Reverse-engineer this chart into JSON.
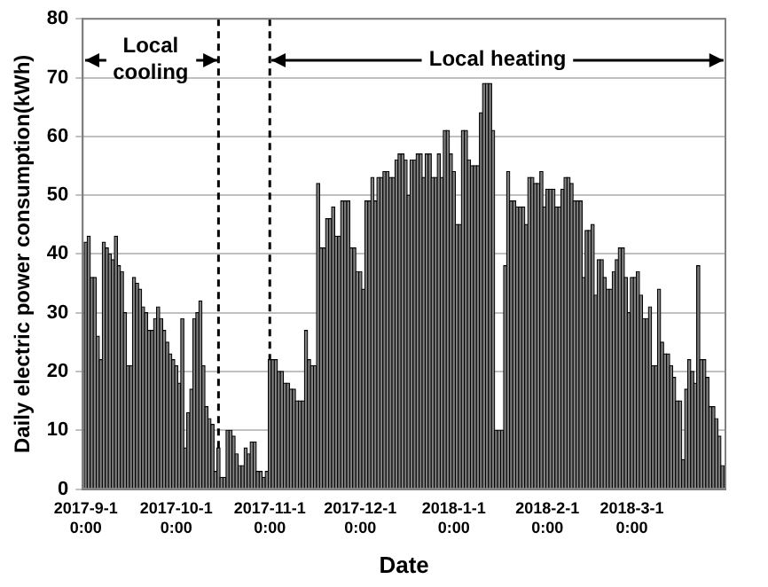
{
  "chart_data": {
    "type": "bar",
    "xlabel": "Date",
    "ylabel": "Daily electric power consumption(kWh)",
    "x": [
      "2017-09-01",
      "2017-09-02",
      "2017-09-03",
      "2017-09-04",
      "2017-09-05",
      "2017-09-06",
      "2017-09-07",
      "2017-09-08",
      "2017-09-09",
      "2017-09-10",
      "2017-09-11",
      "2017-09-12",
      "2017-09-13",
      "2017-09-14",
      "2017-09-15",
      "2017-09-16",
      "2017-09-17",
      "2017-09-18",
      "2017-09-19",
      "2017-09-20",
      "2017-09-21",
      "2017-09-22",
      "2017-09-23",
      "2017-09-24",
      "2017-09-25",
      "2017-09-26",
      "2017-09-27",
      "2017-09-28",
      "2017-09-29",
      "2017-09-30",
      "2017-10-01",
      "2017-10-02",
      "2017-10-03",
      "2017-10-04",
      "2017-10-05",
      "2017-10-06",
      "2017-10-07",
      "2017-10-08",
      "2017-10-09",
      "2017-10-10",
      "2017-10-11",
      "2017-10-12",
      "2017-10-13",
      "2017-10-14",
      "2017-10-15",
      "2017-10-16",
      "2017-10-17",
      "2017-10-18",
      "2017-10-19",
      "2017-10-20",
      "2017-10-21",
      "2017-10-22",
      "2017-10-23",
      "2017-10-24",
      "2017-10-25",
      "2017-10-26",
      "2017-10-27",
      "2017-10-28",
      "2017-10-29",
      "2017-10-30",
      "2017-10-31",
      "2017-11-01",
      "2017-11-02",
      "2017-11-03",
      "2017-11-04",
      "2017-11-05",
      "2017-11-06",
      "2017-11-07",
      "2017-11-08",
      "2017-11-09",
      "2017-11-10",
      "2017-11-11",
      "2017-11-12",
      "2017-11-13",
      "2017-11-14",
      "2017-11-15",
      "2017-11-16",
      "2017-11-17",
      "2017-11-18",
      "2017-11-19",
      "2017-11-20",
      "2017-11-21",
      "2017-11-22",
      "2017-11-23",
      "2017-11-24",
      "2017-11-25",
      "2017-11-26",
      "2017-11-27",
      "2017-11-28",
      "2017-11-29",
      "2017-11-30",
      "2017-12-01",
      "2017-12-02",
      "2017-12-03",
      "2017-12-04",
      "2017-12-05",
      "2017-12-06",
      "2017-12-07",
      "2017-12-08",
      "2017-12-09",
      "2017-12-10",
      "2017-12-11",
      "2017-12-12",
      "2017-12-13",
      "2017-12-14",
      "2017-12-15",
      "2017-12-16",
      "2017-12-17",
      "2017-12-18",
      "2017-12-19",
      "2017-12-20",
      "2017-12-21",
      "2017-12-22",
      "2017-12-23",
      "2017-12-24",
      "2017-12-25",
      "2017-12-26",
      "2017-12-27",
      "2017-12-28",
      "2017-12-29",
      "2017-12-30",
      "2017-12-31",
      "2018-01-01",
      "2018-01-02",
      "2018-01-03",
      "2018-01-04",
      "2018-01-05",
      "2018-01-06",
      "2018-01-07",
      "2018-01-08",
      "2018-01-09",
      "2018-01-10",
      "2018-01-11",
      "2018-01-12",
      "2018-01-13",
      "2018-01-14",
      "2018-01-15",
      "2018-01-16",
      "2018-01-17",
      "2018-01-18",
      "2018-01-19",
      "2018-01-20",
      "2018-01-21",
      "2018-01-22",
      "2018-01-23",
      "2018-01-24",
      "2018-01-25",
      "2018-01-26",
      "2018-01-27",
      "2018-01-28",
      "2018-01-29",
      "2018-01-30",
      "2018-01-31",
      "2018-02-01",
      "2018-02-02",
      "2018-02-03",
      "2018-02-04",
      "2018-02-05",
      "2018-02-06",
      "2018-02-07",
      "2018-02-08",
      "2018-02-09",
      "2018-02-10",
      "2018-02-11",
      "2018-02-12",
      "2018-02-13",
      "2018-02-14",
      "2018-02-15",
      "2018-02-16",
      "2018-02-17",
      "2018-02-18",
      "2018-02-19",
      "2018-02-20",
      "2018-02-21",
      "2018-02-22",
      "2018-02-23",
      "2018-02-24",
      "2018-02-25",
      "2018-02-26",
      "2018-02-27",
      "2018-02-28",
      "2018-03-01",
      "2018-03-02",
      "2018-03-03",
      "2018-03-04",
      "2018-03-05",
      "2018-03-06",
      "2018-03-07",
      "2018-03-08",
      "2018-03-09",
      "2018-03-10",
      "2018-03-11",
      "2018-03-12",
      "2018-03-13",
      "2018-03-14",
      "2018-03-15",
      "2018-03-16",
      "2018-03-17",
      "2018-03-18",
      "2018-03-19",
      "2018-03-20",
      "2018-03-21",
      "2018-03-22",
      "2018-03-23",
      "2018-03-24",
      "2018-03-25",
      "2018-03-26",
      "2018-03-27",
      "2018-03-28",
      "2018-03-29",
      "2018-03-30",
      "2018-03-31"
    ],
    "values": [
      42,
      43,
      36,
      36,
      26,
      22,
      42,
      41,
      40,
      39,
      43,
      38,
      37,
      30,
      21,
      21,
      36,
      35,
      34,
      31,
      30,
      27,
      27,
      29,
      31,
      29,
      27,
      25,
      23,
      22,
      21,
      18,
      29,
      7,
      13,
      17,
      29,
      30,
      32,
      21,
      14,
      12,
      11,
      3,
      7,
      2,
      2,
      10,
      10,
      9,
      6,
      4,
      4,
      7,
      6,
      8,
      8,
      3,
      3,
      2,
      3,
      22,
      22,
      22,
      20,
      20,
      18,
      18,
      17,
      17,
      15,
      15,
      15,
      27,
      22,
      21,
      21,
      52,
      41,
      41,
      46,
      46,
      48,
      43,
      43,
      49,
      49,
      49,
      41,
      41,
      37,
      37,
      34,
      49,
      49,
      53,
      49,
      53,
      53,
      54,
      54,
      53,
      53,
      56,
      57,
      57,
      56,
      50,
      56,
      56,
      57,
      57,
      53,
      57,
      57,
      53,
      53,
      57,
      53,
      61,
      61,
      57,
      54,
      45,
      45,
      61,
      61,
      56,
      55,
      55,
      55,
      64,
      69,
      69,
      69,
      61,
      10,
      10,
      10,
      38,
      54,
      49,
      49,
      48,
      48,
      48,
      45,
      53,
      53,
      52,
      52,
      54,
      48,
      51,
      51,
      51,
      48,
      48,
      51,
      53,
      53,
      52,
      49,
      49,
      49,
      36,
      44,
      44,
      45,
      33,
      39,
      39,
      36,
      34,
      34,
      37,
      39,
      41,
      41,
      36,
      30,
      36,
      36,
      37,
      33,
      29,
      29,
      31,
      21,
      21,
      34,
      25,
      23,
      23,
      21,
      19,
      15,
      15,
      5,
      17,
      22,
      20,
      18,
      38,
      22,
      22,
      19,
      14,
      14,
      12,
      9,
      4
    ],
    "color": "#808080",
    "xlim": [
      "2017-08-31",
      "2018-04-01"
    ],
    "xticks": [
      {
        "value": "2017-09-01",
        "label": "2017-9-1 0:00"
      },
      {
        "value": "2017-10-01",
        "label": "2017-10-1 0:00"
      },
      {
        "value": "2017-11-01",
        "label": "2017-11-1 0:00"
      },
      {
        "value": "2017-12-01",
        "label": "2017-12-1 0:00"
      },
      {
        "value": "2018-01-01",
        "label": "2018-1-1 0:00"
      },
      {
        "value": "2018-02-01",
        "label": "2018-2-1 0:00"
      },
      {
        "value": "2018-03-01",
        "label": "2018-3-1 0:00"
      }
    ],
    "ylim": [
      0,
      80
    ],
    "yticks": [
      0,
      10,
      20,
      30,
      40,
      50,
      60,
      70,
      80
    ],
    "grid": "y",
    "ref_lines": [
      {
        "axis": "x",
        "value": "2017-10-15",
        "color": "#000000",
        "line_style": "dashed"
      },
      {
        "axis": "x",
        "value": "2017-11-01",
        "color": "#000000",
        "line_style": "dashed"
      }
    ],
    "annotations": [
      {
        "text": "Local cooling",
        "x": "2017-10-15",
        "y": 73
      },
      {
        "text": "Local heating",
        "x": "2017-11-01",
        "y": 73
      }
    ]
  }
}
